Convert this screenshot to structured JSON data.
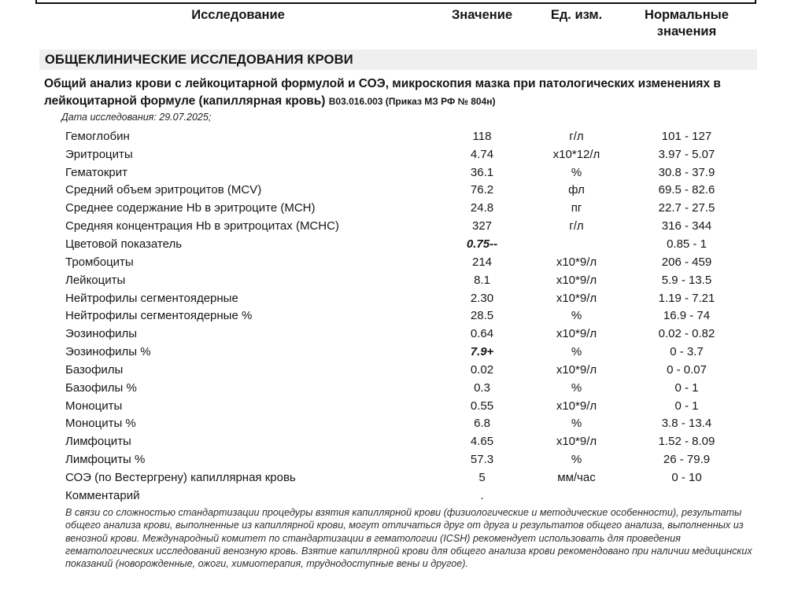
{
  "table_header": {
    "col_test": "Исследование",
    "col_value": "Значение",
    "col_unit": "Ед. изм.",
    "col_normal": "Нормальные значения"
  },
  "section": {
    "title": "ОБЩЕКЛИНИЧЕСКИЕ ИССЛЕДОВАНИЯ КРОВИ",
    "subtitle": "Общий анализ крови с лейкоцитарной формулой и СОЭ, микроскопия мазка при патологических изменениях в лейкоцитарной формуле (капиллярная кровь)",
    "subtitle_code": "В03.016.003 (Приказ МЗ РФ № 804н)",
    "study_date": "Дата исследования: 29.07.2025;"
  },
  "rows": [
    {
      "name": "Гемоглобин",
      "value": "118",
      "unit": "г/л",
      "normal": "101 - 127",
      "flagged": false
    },
    {
      "name": "Эритроциты",
      "value": "4.74",
      "unit": "х10*12/л",
      "normal": "3.97 - 5.07",
      "flagged": false
    },
    {
      "name": "Гематокрит",
      "value": "36.1",
      "unit": "%",
      "normal": "30.8 - 37.9",
      "flagged": false
    },
    {
      "name": "Средний объем эритроцитов (MCV)",
      "value": "76.2",
      "unit": "фл",
      "normal": "69.5 - 82.6",
      "flagged": false
    },
    {
      "name": "Среднее содержание Hb в эритроците (MCH)",
      "value": "24.8",
      "unit": "пг",
      "normal": "22.7 - 27.5",
      "flagged": false
    },
    {
      "name": "Средняя концентрация Hb в эритроцитах (MCHC)",
      "value": "327",
      "unit": "г/л",
      "normal": "316 - 344",
      "flagged": false
    },
    {
      "name": "Цветовой показатель",
      "value": "0.75--",
      "unit": "",
      "normal": "0.85 - 1",
      "flagged": true
    },
    {
      "name": "Тромбоциты",
      "value": "214",
      "unit": "х10*9/л",
      "normal": "206 - 459",
      "flagged": false
    },
    {
      "name": "Лейкоциты",
      "value": "8.1",
      "unit": "х10*9/л",
      "normal": "5.9 - 13.5",
      "flagged": false
    },
    {
      "name": "Нейтрофилы сегментоядерные",
      "value": "2.30",
      "unit": "х10*9/л",
      "normal": "1.19 - 7.21",
      "flagged": false
    },
    {
      "name": "Нейтрофилы сегментоядерные %",
      "value": "28.5",
      "unit": "%",
      "normal": "16.9 - 74",
      "flagged": false
    },
    {
      "name": "Эозинофилы",
      "value": "0.64",
      "unit": "х10*9/л",
      "normal": "0.02 - 0.82",
      "flagged": false
    },
    {
      "name": "Эозинофилы %",
      "value": "7.9+",
      "unit": "%",
      "normal": "0 - 3.7",
      "flagged": true
    },
    {
      "name": "Базофилы",
      "value": "0.02",
      "unit": "х10*9/л",
      "normal": "0 - 0.07",
      "flagged": false
    },
    {
      "name": "Базофилы %",
      "value": "0.3",
      "unit": "%",
      "normal": "0 - 1",
      "flagged": false
    },
    {
      "name": "Моноциты",
      "value": "0.55",
      "unit": "х10*9/л",
      "normal": "0 - 1",
      "flagged": false
    },
    {
      "name": "Моноциты %",
      "value": "6.8",
      "unit": "%",
      "normal": "3.8 - 13.4",
      "flagged": false
    },
    {
      "name": "Лимфоциты",
      "value": "4.65",
      "unit": "х10*9/л",
      "normal": "1.52 - 8.09",
      "flagged": false
    },
    {
      "name": "Лимфоциты %",
      "value": "57.3",
      "unit": "%",
      "normal": "26 - 79.9",
      "flagged": false
    },
    {
      "name": "СОЭ (по Вестергрену) капиллярная кровь",
      "value": "5",
      "unit": "мм/час",
      "normal": "0 - 10",
      "flagged": false
    },
    {
      "name": "Комментарий",
      "value": ".",
      "unit": "",
      "normal": "",
      "flagged": false
    }
  ],
  "comment": "В связи со сложностью стандартизации процедуры взятия капиллярной крови (физиологические и методические особенности), результаты общего анализа крови, выполненные из капиллярной крови, могут отличаться друг от друга и результатов общего анализа, выполненных из венозной крови. Международный комитет по стандартизации в гематологии (ICSH) рекомендует использовать для проведения гематологических исследований венозную кровь. Взятие капиллярной крови для общего анализа крови рекомендовано при наличии медицинских показаний (новорожденные, ожоги, химиотерапия, труднодоступные вены и другое)."
}
